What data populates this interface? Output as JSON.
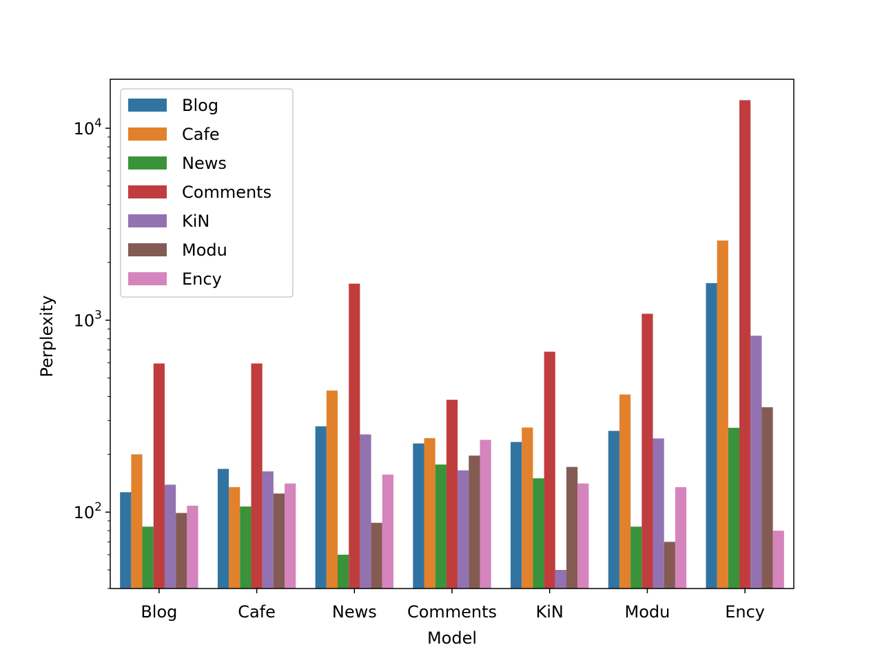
{
  "chart_data": {
    "type": "bar",
    "title": "",
    "xlabel": "Model",
    "ylabel": "Perplexity",
    "yscale": "log",
    "ylim": [
      40,
      18000
    ],
    "ytick_labels": [
      {
        "base": "10",
        "exp": "2",
        "value": 100
      },
      {
        "base": "10",
        "exp": "3",
        "value": 1000
      },
      {
        "base": "10",
        "exp": "4",
        "value": 10000
      }
    ],
    "grid": false,
    "legend_position": "top-left",
    "categories": [
      "Blog",
      "Cafe",
      "News",
      "Comments",
      "KiN",
      "Modu",
      "Ency"
    ],
    "series": [
      {
        "name": "Blog",
        "color": "#3274a1",
        "values": [
          127,
          168,
          280,
          228,
          232,
          265,
          1560
        ]
      },
      {
        "name": "Cafe",
        "color": "#e1812c",
        "values": [
          200,
          135,
          430,
          243,
          276,
          410,
          2600
        ]
      },
      {
        "name": "News",
        "color": "#3a923a",
        "values": [
          84,
          107,
          60,
          177,
          150,
          84,
          275
        ]
      },
      {
        "name": "Comments",
        "color": "#c03d3e",
        "values": [
          595,
          595,
          1550,
          385,
          685,
          1080,
          14000
        ]
      },
      {
        "name": "KiN",
        "color": "#9372b2",
        "values": [
          139,
          163,
          254,
          165,
          50,
          242,
          830
        ]
      },
      {
        "name": "Modu",
        "color": "#845b53",
        "values": [
          99,
          125,
          88,
          197,
          172,
          70,
          352
        ]
      },
      {
        "name": "Ency",
        "color": "#d684bd",
        "values": [
          108,
          141,
          157,
          238,
          141,
          135,
          80
        ]
      }
    ]
  }
}
